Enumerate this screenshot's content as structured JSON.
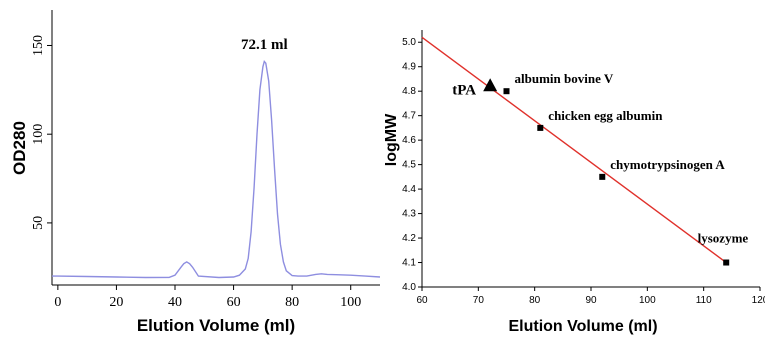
{
  "colors": {
    "chromatogram_line": "#8e8ee0",
    "fit_line": "#e0312b",
    "axis": "#000000",
    "marker": "#000000"
  },
  "chart_data": [
    {
      "type": "line",
      "title": "",
      "xlabel": "Elution Volume (ml)",
      "ylabel": "OD280",
      "xlim": [
        -2,
        110
      ],
      "ylim": [
        15,
        170
      ],
      "x_ticks": [
        0,
        20,
        40,
        60,
        80,
        100
      ],
      "y_ticks": [
        50,
        100,
        150
      ],
      "grid": false,
      "series": [
        {
          "x": [
            -2,
            0,
            10,
            20,
            30,
            38,
            40,
            42,
            43,
            44,
            45,
            46,
            48,
            55,
            60,
            62,
            64,
            65,
            66,
            67,
            68,
            69,
            70,
            70.5,
            71,
            72,
            73,
            74,
            75,
            76,
            77,
            78,
            80,
            82,
            85,
            88,
            90,
            92,
            95,
            100,
            105,
            110
          ],
          "y": [
            20,
            20,
            19.8,
            19.5,
            19.2,
            19.3,
            20.5,
            25,
            27,
            28,
            27,
            25,
            20,
            19.2,
            19.5,
            20.5,
            24,
            30,
            45,
            70,
            100,
            125,
            138,
            141,
            140,
            130,
            108,
            80,
            55,
            38,
            28,
            23,
            20.3,
            20,
            20,
            21,
            21.3,
            21,
            20.8,
            20.5,
            20,
            19.5
          ]
        }
      ],
      "annotations": [
        {
          "text": "72.1 ml",
          "x": 70.5,
          "y": 148
        }
      ]
    },
    {
      "type": "scatter",
      "title": "",
      "xlabel": "Elution Volume (ml)",
      "ylabel": "logMW",
      "xlim": [
        60,
        120
      ],
      "ylim": [
        4.0,
        5.05
      ],
      "x_ticks": [
        60,
        70,
        80,
        90,
        100,
        110,
        120
      ],
      "x_tick_labels": [
        "60",
        "70",
        "80",
        "90",
        "100",
        "110",
        "120"
      ],
      "y_ticks": [
        4.0,
        4.1,
        4.2,
        4.3,
        4.4,
        4.5,
        4.6,
        4.7,
        4.8,
        4.9,
        5.0
      ],
      "y_tick_labels": [
        "4.0",
        "4.1",
        "4.2",
        "4.3",
        "4.4",
        "4.5",
        "4.6",
        "4.7",
        "4.8",
        "4.9",
        "5.0"
      ],
      "grid": false,
      "points": [
        {
          "label": "albumin bovine V",
          "x": 75,
          "y": 4.8
        },
        {
          "label": "chicken egg albumin",
          "x": 81,
          "y": 4.65
        },
        {
          "label": "chymotrypsinogen A",
          "x": 92,
          "y": 4.45
        },
        {
          "label": "lysozyme",
          "x": 114,
          "y": 4.1
        }
      ],
      "sample": {
        "label": "tPA",
        "x": 72.1,
        "y": 4.82
      },
      "fit_line": {
        "x": [
          60,
          114
        ],
        "y": [
          5.02,
          4.1
        ]
      }
    }
  ]
}
